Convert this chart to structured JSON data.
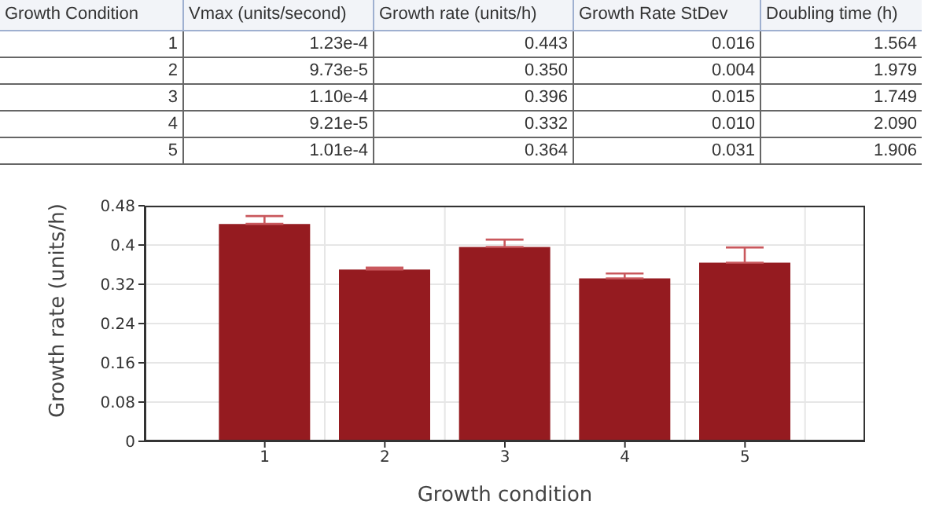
{
  "chart_data": {
    "type": "bar",
    "annotations": [
      "Growth Condition",
      "Vmax (units/second)",
      "Growth rate (units/h)",
      "Growth Rate StDev",
      "Doubling time (h)",
      "1",
      "1.23e-4",
      "0.443",
      "0.016",
      "1.564",
      "2",
      "9.73e-5",
      "0.350",
      "0.004",
      "1.979",
      "3",
      "1.10e-4",
      "0.396",
      "0.015",
      "1.749",
      "4",
      "9.21e-5",
      "0.332",
      "0.010",
      "2.090",
      "5",
      "1.01e-4",
      "0.364",
      "0.031",
      "1.906"
    ],
    "xlabel": "Growth condition",
    "ylabel": "Growth rate (units/h)",
    "categories": [
      "1",
      "2",
      "3",
      "4",
      "5"
    ],
    "values": [
      0.443,
      0.35,
      0.396,
      0.332,
      0.364
    ],
    "errors": [
      [
        0.443,
        0.459
      ],
      [
        0.35,
        0.354
      ],
      [
        0.396,
        0.411
      ],
      [
        0.332,
        0.342
      ],
      [
        0.364,
        0.395
      ]
    ],
    "color": "#951b20",
    "ylim": [
      0,
      0.48
    ],
    "yticks": [
      0,
      0.08,
      0.16,
      0.24,
      0.32,
      0.4,
      0.48
    ],
    "grid": true
  }
}
